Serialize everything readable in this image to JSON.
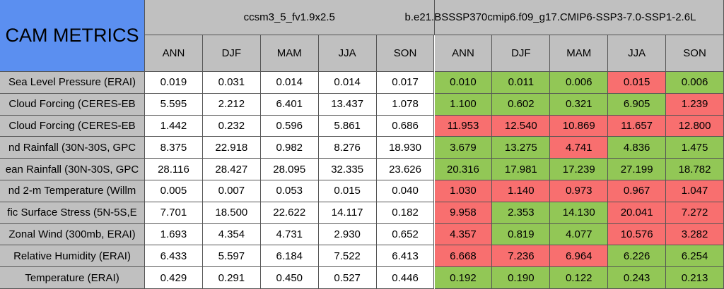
{
  "title": "CAM METRICS",
  "cases": [
    {
      "name": "ccsm3_5_fv1.9x2.5",
      "seasons": [
        "ANN",
        "DJF",
        "MAM",
        "JJA",
        "SON"
      ]
    },
    {
      "name": "b.e21.BSSSP370cmip6.f09_g17.CMIP6-SSP3-7.0-SSP1-2.6L",
      "seasons": [
        "ANN",
        "DJF",
        "MAM",
        "JJA",
        "SON"
      ]
    }
  ],
  "rows": [
    {
      "label": "Sea Level Pressure (ERAI)",
      "case1": [
        "0.019",
        "0.031",
        "0.014",
        "0.014",
        "0.017"
      ],
      "case2": [
        "0.010",
        "0.011",
        "0.006",
        "0.015",
        "0.006"
      ],
      "case2_colors": [
        "#92c756",
        "#92c756",
        "#92c756",
        "#f86f6f",
        "#92c756"
      ]
    },
    {
      "label": "Cloud Forcing (CERES-EB",
      "case1": [
        "5.595",
        "2.212",
        "6.401",
        "13.437",
        "1.078"
      ],
      "case2": [
        "1.100",
        "0.602",
        "0.321",
        "6.905",
        "1.239"
      ],
      "case2_colors": [
        "#92c756",
        "#92c756",
        "#92c756",
        "#92c756",
        "#f86f6f"
      ]
    },
    {
      "label": "Cloud Forcing (CERES-EB",
      "case1": [
        "1.442",
        "0.232",
        "0.596",
        "5.861",
        "0.686"
      ],
      "case2": [
        "11.953",
        "12.540",
        "10.869",
        "11.657",
        "12.800"
      ],
      "case2_colors": [
        "#f86f6f",
        "#f86f6f",
        "#f86f6f",
        "#f86f6f",
        "#f86f6f"
      ]
    },
    {
      "label": "nd Rainfall (30N-30S, GPC",
      "case1": [
        "8.375",
        "22.918",
        "0.982",
        "8.276",
        "18.930"
      ],
      "case2": [
        "3.679",
        "13.275",
        "4.741",
        "4.836",
        "1.475"
      ],
      "case2_colors": [
        "#92c756",
        "#92c756",
        "#f86f6f",
        "#92c756",
        "#92c756"
      ]
    },
    {
      "label": "ean Rainfall (30N-30S, GPC",
      "case1": [
        "28.116",
        "28.427",
        "28.095",
        "32.335",
        "23.626"
      ],
      "case2": [
        "20.316",
        "17.981",
        "17.239",
        "27.199",
        "18.782"
      ],
      "case2_colors": [
        "#92c756",
        "#92c756",
        "#92c756",
        "#92c756",
        "#92c756"
      ]
    },
    {
      "label": "nd 2-m Temperature (Willm",
      "case1": [
        "0.005",
        "0.007",
        "0.053",
        "0.015",
        "0.040"
      ],
      "case2": [
        "1.030",
        "1.140",
        "0.973",
        "0.967",
        "1.047"
      ],
      "case2_colors": [
        "#f86f6f",
        "#f86f6f",
        "#f86f6f",
        "#f86f6f",
        "#f86f6f"
      ]
    },
    {
      "label": "fic Surface Stress (5N-5S,E",
      "case1": [
        "7.701",
        "18.500",
        "22.622",
        "14.117",
        "0.182"
      ],
      "case2": [
        "9.958",
        "2.353",
        "14.130",
        "20.041",
        "7.272"
      ],
      "case2_colors": [
        "#f86f6f",
        "#92c756",
        "#92c756",
        "#f86f6f",
        "#f86f6f"
      ]
    },
    {
      "label": "Zonal Wind (300mb, ERAI)",
      "case1": [
        "1.693",
        "4.354",
        "4.731",
        "2.930",
        "0.652"
      ],
      "case2": [
        "4.357",
        "0.819",
        "4.077",
        "10.576",
        "3.282"
      ],
      "case2_colors": [
        "#f86f6f",
        "#92c756",
        "#92c756",
        "#f86f6f",
        "#f86f6f"
      ]
    },
    {
      "label": "Relative Humidity (ERAI)",
      "case1": [
        "6.433",
        "5.597",
        "6.184",
        "7.522",
        "6.413"
      ],
      "case2": [
        "6.668",
        "7.236",
        "6.964",
        "6.226",
        "6.254"
      ],
      "case2_colors": [
        "#f86f6f",
        "#f86f6f",
        "#f86f6f",
        "#92c756",
        "#92c756"
      ]
    },
    {
      "label": "Temperature (ERAI)",
      "case1": [
        "0.429",
        "0.291",
        "0.450",
        "0.527",
        "0.446"
      ],
      "case2": [
        "0.192",
        "0.190",
        "0.122",
        "0.243",
        "0.213"
      ],
      "case2_colors": [
        "#92c756",
        "#92c756",
        "#92c756",
        "#92c756",
        "#92c756"
      ]
    }
  ]
}
